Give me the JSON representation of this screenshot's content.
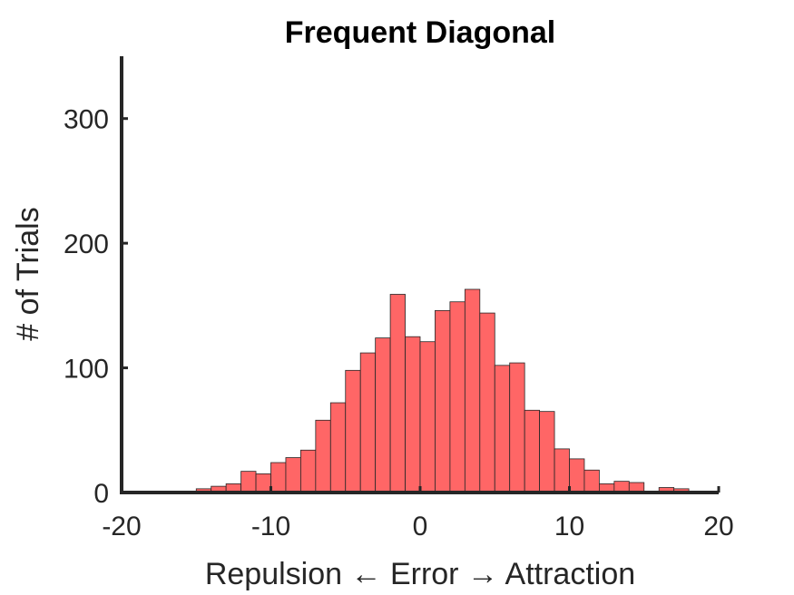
{
  "chart_data": {
    "type": "bar",
    "title": "Frequent Diagonal",
    "xlabel": "Repulsion ← Error → Attraction",
    "ylabel": "# of Trials",
    "xlim": [
      -20,
      20
    ],
    "ylim": [
      0,
      350
    ],
    "xticks": [
      "-20",
      "-10",
      "0",
      "10",
      "20"
    ],
    "yticks": [
      "0",
      "100",
      "200",
      "300"
    ],
    "xtick_values": [
      -20,
      -10,
      0,
      10,
      20
    ],
    "ytick_values": [
      0,
      100,
      200,
      300
    ],
    "bin_width": 1,
    "bin_start": -20,
    "bar_color": "#ff6666",
    "edge_color": "#262626",
    "grid": false,
    "values": [
      0,
      0,
      0,
      0,
      0,
      3,
      5,
      7,
      17,
      15,
      24,
      28,
      34,
      58,
      72,
      98,
      112,
      124,
      159,
      125,
      121,
      146,
      153,
      163,
      144,
      102,
      104,
      66,
      65,
      35,
      27,
      18,
      7,
      9,
      8,
      1,
      4,
      3,
      1,
      1
    ]
  }
}
